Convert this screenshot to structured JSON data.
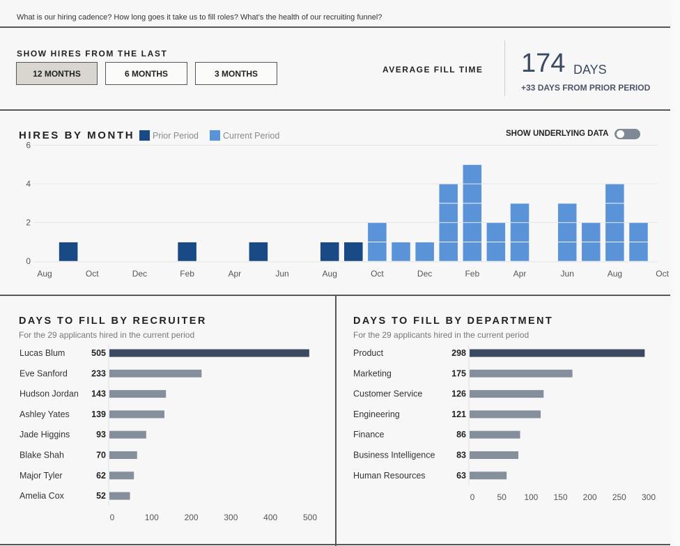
{
  "header": {
    "question": "What is our hiring cadence? How long goes it take us to fill roles? What’s the health of our recruiting funnel?"
  },
  "filter": {
    "label": "SHOW HIRES FROM THE LAST",
    "options": [
      {
        "label": "12 MONTHS",
        "active": true
      },
      {
        "label": "6 MONTHS",
        "active": false
      },
      {
        "label": "3 MONTHS",
        "active": false
      }
    ]
  },
  "kpi": {
    "label": "AVERAGE FILL TIME",
    "value": "174",
    "unit": "DAYS",
    "delta": "+33 DAYS FROM PRIOR PERIOD"
  },
  "toggle": {
    "label": "SHOW UNDERLYING DATA",
    "on": false
  },
  "colors": {
    "prior": "#1a4a86",
    "current": "#5b93d9",
    "highlight_bar": "#3b4a60",
    "bar": "#858f9c"
  },
  "chart_data": [
    {
      "type": "bar",
      "title": "HIRES BY MONTH",
      "stacked_units": true,
      "legend": [
        "Prior Period",
        "Current Period"
      ],
      "legend_placement": "top-left",
      "xlabel": "",
      "ylabel": "",
      "ylim": [
        0,
        6
      ],
      "yticks": [
        0,
        2,
        4,
        6
      ],
      "xtick_labels": [
        "Aug",
        "Oct",
        "Dec",
        "Feb",
        "Apr",
        "Jun",
        "Aug",
        "Oct",
        "Dec",
        "Feb",
        "Apr",
        "Jun",
        "Aug",
        "Oct"
      ],
      "months": [
        "Aug",
        "Sep",
        "Oct",
        "Nov",
        "Dec",
        "Jan",
        "Feb",
        "Mar",
        "Apr",
        "May",
        "Jun",
        "Jul",
        "Aug",
        "Sep",
        "Oct",
        "Nov",
        "Dec",
        "Jan",
        "Feb",
        "Mar",
        "Apr",
        "May",
        "Jun",
        "Jul",
        "Aug",
        "Sep",
        "Oct"
      ],
      "series": [
        {
          "name": "Prior Period",
          "values": [
            0,
            1,
            0,
            0,
            0,
            0,
            1,
            0,
            0,
            1,
            0,
            0,
            1,
            1,
            0,
            0,
            0,
            0,
            0,
            0,
            0,
            0,
            0,
            0,
            0,
            0,
            0
          ]
        },
        {
          "name": "Current Period",
          "values": [
            0,
            0,
            0,
            0,
            0,
            0,
            0,
            0,
            0,
            0,
            0,
            0,
            0,
            0,
            2,
            1,
            1,
            4,
            5,
            2,
            3,
            0,
            3,
            2,
            4,
            2,
            0
          ]
        }
      ],
      "grid": true
    },
    {
      "type": "bar",
      "orientation": "horizontal",
      "title": "DAYS TO FILL BY RECRUITER",
      "subtitle": "For the 29 applicants hired in the current period",
      "categories": [
        "Lucas Blum",
        "Eve Sanford",
        "Hudson Jordan",
        "Ashley Yates",
        "Jade Higgins",
        "Blake Shah",
        "Major Tyler",
        "Amelia Cox"
      ],
      "values": [
        505,
        233,
        143,
        139,
        93,
        70,
        62,
        52
      ],
      "xlim": [
        0,
        500
      ],
      "xticks": [
        0,
        100,
        200,
        300,
        400,
        500
      ]
    },
    {
      "type": "bar",
      "orientation": "horizontal",
      "title": "DAYS TO FILL BY DEPARTMENT",
      "subtitle": "For the 29 applicants hired in the current period",
      "categories": [
        "Product",
        "Marketing",
        "Customer Service",
        "Engineering",
        "Finance",
        "Business Intelligence",
        "Human Resources"
      ],
      "values": [
        298,
        175,
        126,
        121,
        86,
        83,
        63
      ],
      "xlim": [
        0,
        300
      ],
      "xticks": [
        0,
        50,
        100,
        150,
        200,
        250,
        300
      ]
    }
  ]
}
